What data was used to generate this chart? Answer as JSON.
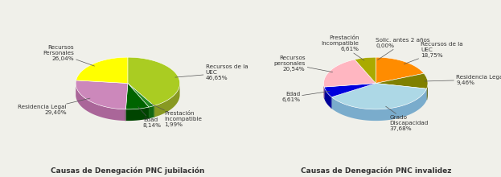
{
  "chart1": {
    "title": "Causas de Denegación PNC jubilación",
    "labels": [
      "Recursos de la\nUEC",
      "Prestación\nIncompatible",
      "Edad",
      "Residencia Legal",
      "Recursos\nPersonales"
    ],
    "values": [
      46.65,
      1.99,
      8.14,
      29.4,
      26.04
    ],
    "pct_labels": [
      "46,65%",
      "1,99%",
      "8,14%",
      "29,40%",
      "26,04%"
    ],
    "colors": [
      "#aacc22",
      "#228B22",
      "#006400",
      "#cc88bb",
      "#ffff00"
    ],
    "shadow_colors": [
      "#889922",
      "#116611",
      "#004400",
      "#aa6699",
      "#cccc00"
    ],
    "startangle": 90
  },
  "chart2": {
    "title": "Causas de Denegación PNC invalidez",
    "labels": [
      "Solic. antes 2 años",
      "Recursos de la\nUEC",
      "Residencia Legal",
      "Grado\nDiscapacidad",
      "Edad",
      "Recursos\npersonales",
      "Prestación\nIncompatible"
    ],
    "values": [
      0.0,
      18.75,
      9.46,
      37.68,
      6.61,
      20.54,
      6.61
    ],
    "pct_labels": [
      "0,00%",
      "18,75%",
      "9,46%",
      "37,68%",
      "6,61%",
      "20,54%",
      "6,61%"
    ],
    "colors": [
      "#ffff00",
      "#ff8c00",
      "#808000",
      "#add8e6",
      "#0000dd",
      "#ffb6c1",
      "#aaaa00"
    ],
    "shadow_colors": [
      "#cccc00",
      "#cc6600",
      "#606000",
      "#7aaccc",
      "#000099",
      "#dd9099",
      "#888800"
    ],
    "startangle": 90
  },
  "background_color": "#f0f0ea",
  "title_fontsize": 6.5,
  "label_fontsize": 5.2
}
